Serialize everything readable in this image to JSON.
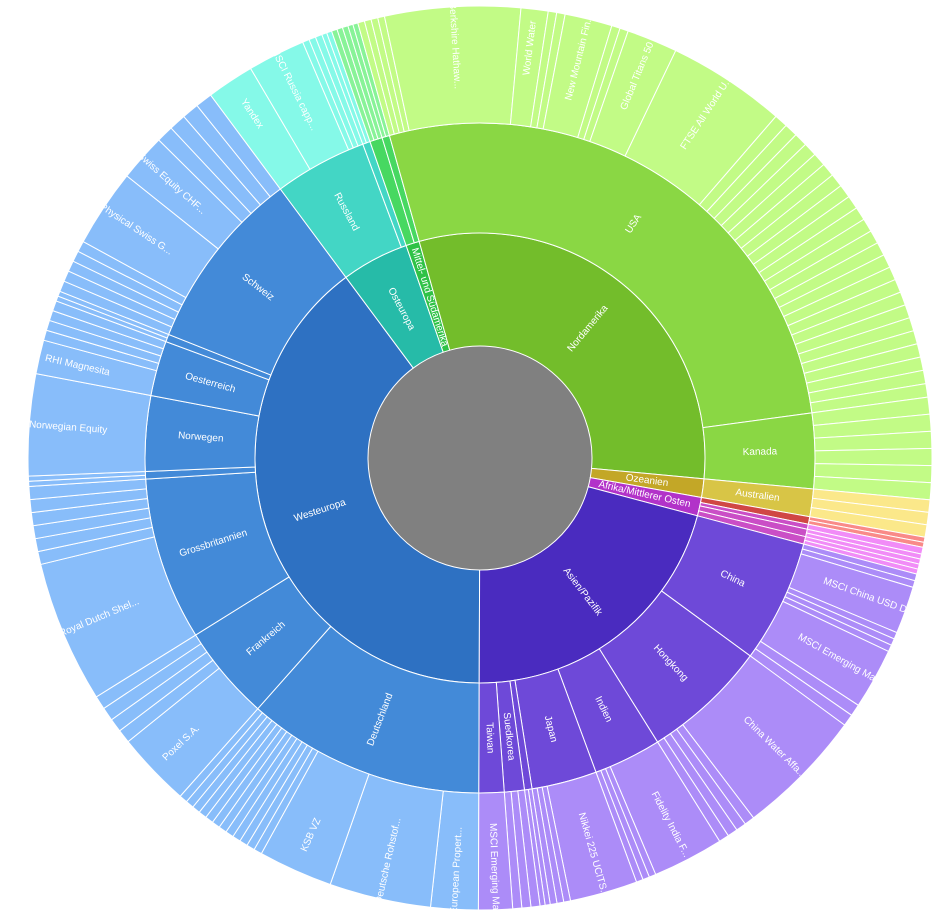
{
  "chart_data": {
    "type": "sunburst",
    "center_color": "#808080",
    "leaf_label_order": [
      "FTSE All World U...",
      "Global Titans 50",
      "New Mountain Fin...",
      "World Water",
      "Berkshire Hathaw...",
      "MSCI China USD D...",
      "MSCI Emerging Ma...",
      "China Water Affa...",
      "Fidelity India F...",
      "Nikkei 225 UCITS...",
      "MSCI Emerging Ma...",
      "European Propert...",
      "Deutsche Rohstof...",
      "KSB VZ",
      "Poxel S.A.",
      "Royal Dutch Shel...",
      "Norwegian Equity",
      "RHI Magnesita",
      "Physical Swiss G...",
      "Swiss Equity CHF...",
      "Yandex",
      "MSCI Russia capp..."
    ],
    "regions": [
      {
        "name": "Westeuropa",
        "color": "#2e71c2",
        "countries": [
          {
            "name": "Deutschland",
            "value": 95,
            "color": "#438ad8",
            "holdings": [
              {
                "label": "European Propert...",
                "value": 14,
                "color": "#88bdfa"
              },
              {
                "label": "Deutsche Rohstof...",
                "value": 30,
                "color": "#88bdfa"
              },
              {
                "label": "KSB VZ",
                "value": 22,
                "color": "#88bdfa"
              },
              {
                "n": 12,
                "value": 29,
                "color": "#88bdfa"
              }
            ]
          },
          {
            "name": "Frankreich",
            "value": 38,
            "color": "#438ad8",
            "holdings": [
              {
                "label": "Poxel S.A.",
                "value": 22,
                "color": "#88bdfa"
              },
              {
                "n": 4,
                "value": 16,
                "color": "#88bdfa"
              }
            ]
          },
          {
            "name": "Grossbritannien",
            "value": 65,
            "color": "#438ad8",
            "holdings": [
              {
                "label": "Royal Dutch Shel...",
                "value": 42,
                "color": "#88bdfa"
              },
              {
                "n": 6,
                "value": 23,
                "color": "#88bdfa"
              }
            ]
          },
          {
            "name": "",
            "value": 3,
            "color": "#438ad8",
            "holdings": [
              {
                "n": 2,
                "value": 3,
                "color": "#88bdfa"
              }
            ]
          },
          {
            "name": "Norwegen",
            "value": 30,
            "color": "#438ad8",
            "holdings": [
              {
                "label": "Norwegian Equity",
                "value": 30,
                "color": "#88bdfa"
              }
            ]
          },
          {
            "name": "Oesterreich",
            "value": 22,
            "color": "#438ad8",
            "holdings": [
              {
                "label": "RHI Magnesita",
                "value": 10,
                "color": "#88bdfa"
              },
              {
                "n": 4,
                "value": 12,
                "color": "#88bdfa"
              }
            ]
          },
          {
            "name": "",
            "value": 3,
            "color": "#438ad8",
            "holdings": [
              {
                "n": 2,
                "value": 3,
                "color": "#88bdfa"
              }
            ]
          },
          {
            "name": "Schweiz",
            "value": 73,
            "color": "#438ad8",
            "holdings": [
              {
                "n": 5,
                "value": 16,
                "color": "#88bdfa"
              },
              {
                "label": "Physical Swiss G...",
                "value": 23,
                "color": "#88bdfa"
              },
              {
                "label": "Swiss Equity CHF...",
                "value": 14,
                "color": "#88bdfa"
              },
              {
                "n": 4,
                "value": 20,
                "color": "#88bdfa"
              }
            ]
          }
        ]
      },
      {
        "name": "Osteuropa",
        "color": "#26bba8",
        "countries": [
          {
            "name": "Russland",
            "value": 37,
            "color": "#43d6c5",
            "holdings": [
              {
                "label": "Yandex",
                "value": 14,
                "color": "#85f9e8"
              },
              {
                "label": "MSCI Russia capp...",
                "value": 17,
                "color": "#85f9e8"
              },
              {
                "n": 3,
                "value": 6,
                "color": "#85f9e8"
              }
            ]
          },
          {
            "name": "",
            "value": 3,
            "color": "#43d6c5",
            "holdings": [
              {
                "n": 2,
                "value": 3,
                "color": "#85f9e8"
              }
            ]
          }
        ]
      },
      {
        "name": "Mittel- und Südamerika",
        "color": "#2fc246",
        "countries": [
          {
            "name": "",
            "value": 5,
            "color": "#47d861",
            "holdings": [
              {
                "n": 3,
                "value": 5,
                "color": "#88f398"
              }
            ]
          },
          {
            "name": "",
            "value": 3,
            "color": "#47d861",
            "holdings": [
              {
                "n": 2,
                "value": 3,
                "color": "#88f398"
              }
            ]
          }
        ]
      },
      {
        "name": "Nordamerika",
        "color": "#73bd2b",
        "countries": [
          {
            "name": "USA",
            "value": 225,
            "color": "#8ad744",
            "holdings": [
              {
                "n": 4,
                "value": 8,
                "color": "#c2fb86"
              },
              {
                "label": "Berkshire Hathaw...",
                "value": 40,
                "color": "#c2fb86"
              },
              {
                "label": "World Water",
                "value": 8,
                "color": "#c2fb86"
              },
              {
                "n": 2,
                "value": 5,
                "color": "#c2fb86"
              },
              {
                "label": "New Mountain Fin...",
                "value": 14,
                "color": "#c2fb86"
              },
              {
                "n": 2,
                "value": 5,
                "color": "#c2fb86"
              },
              {
                "label": "Global Titans 50",
                "value": 15,
                "color": "#c2fb86"
              },
              {
                "label": "FTSE All World U...",
                "value": 35,
                "color": "#c2fb86"
              },
              {
                "n": 24,
                "value": 95,
                "color": "#c2fb86"
              }
            ]
          },
          {
            "name": "Kanada",
            "value": 30,
            "color": "#8ad744",
            "holdings": [
              {
                "n": 6,
                "value": 30,
                "color": "#c2fb86"
              }
            ]
          }
        ]
      },
      {
        "name": "Ozeanien",
        "color": "#c3a727",
        "countries": [
          {
            "name": "Australien",
            "value": 11,
            "color": "#d8c546",
            "holdings": [
              {
                "n": 3,
                "value": 11,
                "color": "#fbe88a"
              }
            ]
          }
        ]
      },
      {
        "name": "Afrika/Mittlerer Osten",
        "color": "#b232c9",
        "countries": [
          {
            "name": "",
            "value": 3,
            "color": "#d04744",
            "holdings": [
              {
                "n": 2,
                "value": 3,
                "color": "#f98a88"
              }
            ]
          },
          {
            "name": "",
            "value": 2,
            "color": "#ca4ec6",
            "holdings": [
              {
                "n": 1,
                "value": 2,
                "color": "#f18cf7"
              }
            ]
          },
          {
            "name": "",
            "value": 3,
            "color": "#ca4ec6",
            "holdings": [
              {
                "n": 2,
                "value": 3,
                "color": "#f18cf7"
              }
            ]
          },
          {
            "name": "",
            "value": 3,
            "color": "#ca4ec6",
            "holdings": [
              {
                "n": 2,
                "value": 3,
                "color": "#f18cf7"
              }
            ]
          }
        ]
      },
      {
        "name": "Asien/Pazifik",
        "color": "#4a2bbf",
        "countries": [
          {
            "name": "China",
            "value": 49,
            "color": "#6e49d8",
            "holdings": [
              {
                "n": 2,
                "value": 4,
                "color": "#ac8cf8"
              },
              {
                "label": "MSCI China USD D...",
                "value": 14,
                "color": "#ac8cf8"
              },
              {
                "n": 3,
                "value": 6,
                "color": "#ac8cf8"
              },
              {
                "label": "MSCI Emerging Ma...",
                "value": 18,
                "color": "#ac8cf8"
              },
              {
                "n": 2,
                "value": 7,
                "color": "#ac8cf8"
              }
            ]
          },
          {
            "name": "Hongkong",
            "value": 50,
            "color": "#6e49d8",
            "holdings": [
              {
                "label": "China Water Affa...",
                "value": 38,
                "color": "#ac8cf8"
              },
              {
                "n": 4,
                "value": 12,
                "color": "#ac8cf8"
              }
            ]
          },
          {
            "name": "Indien",
            "value": 27,
            "color": "#6e49d8",
            "holdings": [
              {
                "label": "Fidelity India F...",
                "value": 21,
                "color": "#ac8cf8"
              },
              {
                "n": 3,
                "value": 6,
                "color": "#ac8cf8"
              }
            ]
          },
          {
            "name": "Japan",
            "value": 26,
            "color": "#6e49d8",
            "holdings": [
              {
                "label": "Nikkei 225 UCITS...",
                "value": 20,
                "color": "#ac8cf8"
              },
              {
                "n": 3,
                "value": 6,
                "color": "#ac8cf8"
              }
            ]
          },
          {
            "name": "",
            "value": 3,
            "color": "#6e49d8",
            "holdings": [
              {
                "n": 2,
                "value": 3,
                "color": "#ac8cf8"
              }
            ]
          },
          {
            "name": "Suedkorea",
            "value": 8,
            "color": "#6e49d8",
            "holdings": [
              {
                "n": 3,
                "value": 8,
                "color": "#ac8cf8"
              }
            ]
          },
          {
            "name": "Taiwan",
            "value": 10,
            "color": "#6e49d8",
            "holdings": [
              {
                "label": "MSCI Emerging Ma...",
                "value": 10,
                "color": "#ac8cf8"
              }
            ]
          }
        ]
      }
    ]
  }
}
